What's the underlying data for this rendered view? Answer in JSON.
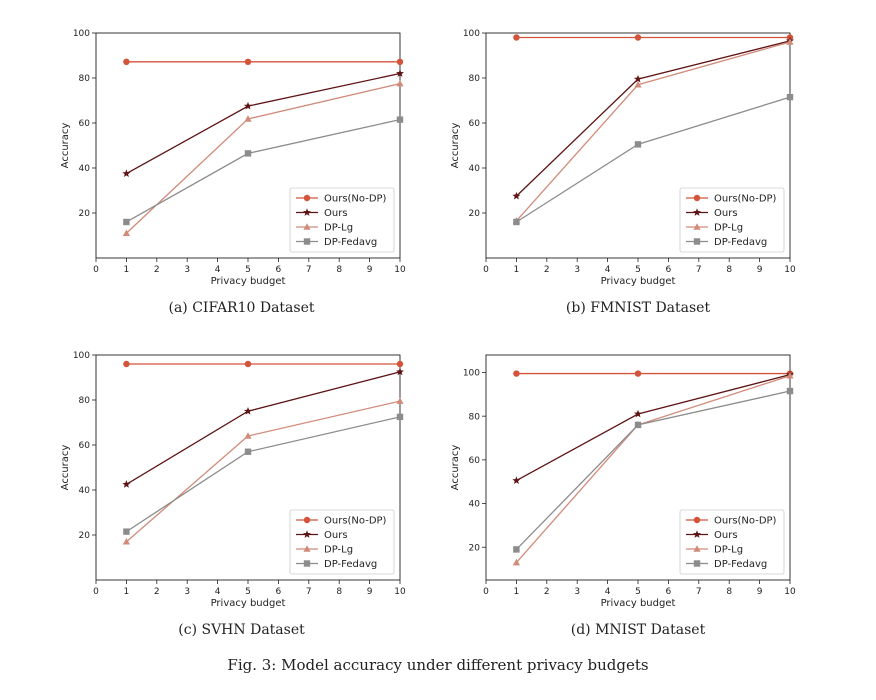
{
  "figure_caption": "Fig. 3: Model accuracy under different privacy budgets",
  "series_styles": [
    {
      "name": "Ours(No-DP)",
      "color": "#d4533b",
      "marker": "circle"
    },
    {
      "name": "Ours",
      "color": "#5e1414",
      "marker": "star"
    },
    {
      "name": "DP-Lg",
      "color": "#d18b7a",
      "marker": "triangle"
    },
    {
      "name": "DP-Fedavg",
      "color": "#8c8c8c",
      "marker": "square"
    }
  ],
  "chart_data": [
    {
      "type": "line",
      "caption": "(a) CIFAR10 Dataset",
      "xlabel": "Privacy budget",
      "ylabel": "Accuracy",
      "xlim": [
        0,
        10
      ],
      "ylim": [
        0,
        100
      ],
      "xticks": [
        0,
        1,
        2,
        3,
        4,
        5,
        6,
        7,
        8,
        9,
        10
      ],
      "yticks": [
        20,
        40,
        60,
        80,
        100
      ],
      "legend_position": "lower-right",
      "x": [
        1,
        5,
        10
      ],
      "series": [
        {
          "name": "Ours(No-DP)",
          "values": [
            87.2,
            87.2,
            87.2
          ]
        },
        {
          "name": "Ours",
          "values": [
            37.5,
            67.5,
            82
          ]
        },
        {
          "name": "DP-Lg",
          "values": [
            11,
            61.8,
            77.5
          ]
        },
        {
          "name": "DP-Fedavg",
          "values": [
            16,
            46.5,
            61.5
          ]
        }
      ]
    },
    {
      "type": "line",
      "caption": "(b) FMNIST Dataset",
      "xlabel": "Privacy budget",
      "ylabel": "Accuracy",
      "xlim": [
        0,
        10
      ],
      "ylim": [
        0,
        100
      ],
      "xticks": [
        0,
        1,
        2,
        3,
        4,
        5,
        6,
        7,
        8,
        9,
        10
      ],
      "yticks": [
        20,
        40,
        60,
        80,
        100
      ],
      "legend_position": "lower-right",
      "x": [
        1,
        5,
        10
      ],
      "series": [
        {
          "name": "Ours(No-DP)",
          "values": [
            98,
            98,
            98
          ]
        },
        {
          "name": "Ours",
          "values": [
            27.5,
            79.5,
            96.5
          ]
        },
        {
          "name": "DP-Lg",
          "values": [
            16.5,
            77,
            96
          ]
        },
        {
          "name": "DP-Fedavg",
          "values": [
            16,
            50.5,
            71.5
          ]
        }
      ]
    },
    {
      "type": "line",
      "caption": "(c) SVHN Dataset",
      "xlabel": "Privacy budget",
      "ylabel": "Accuracy",
      "xlim": [
        0,
        10
      ],
      "ylim": [
        0,
        100
      ],
      "xticks": [
        0,
        1,
        2,
        3,
        4,
        5,
        6,
        7,
        8,
        9,
        10
      ],
      "yticks": [
        20,
        40,
        60,
        80,
        100
      ],
      "legend_position": "lower-right",
      "x": [
        1,
        5,
        10
      ],
      "series": [
        {
          "name": "Ours(No-DP)",
          "values": [
            96,
            96,
            96
          ]
        },
        {
          "name": "Ours",
          "values": [
            42.5,
            75,
            92.5
          ]
        },
        {
          "name": "DP-Lg",
          "values": [
            17,
            64,
            79.5
          ]
        },
        {
          "name": "DP-Fedavg",
          "values": [
            21.5,
            57,
            72.5
          ]
        }
      ]
    },
    {
      "type": "line",
      "caption": "(d) MNIST Dataset",
      "xlabel": "Privacy budget",
      "ylabel": "Accuracy",
      "xlim": [
        0,
        10
      ],
      "ylim": [
        5,
        108
      ],
      "xticks": [
        0,
        1,
        2,
        3,
        4,
        5,
        6,
        7,
        8,
        9,
        10
      ],
      "yticks": [
        20,
        40,
        60,
        80,
        100
      ],
      "legend_position": "lower-right",
      "x": [
        1,
        5,
        10
      ],
      "series": [
        {
          "name": "Ours(No-DP)",
          "values": [
            99.5,
            99.5,
            99.5
          ]
        },
        {
          "name": "Ours",
          "values": [
            50.5,
            81,
            99
          ]
        },
        {
          "name": "DP-Lg",
          "values": [
            13,
            76,
            98.5
          ]
        },
        {
          "name": "DP-Fedavg",
          "values": [
            19,
            76,
            91.5
          ]
        }
      ]
    }
  ]
}
